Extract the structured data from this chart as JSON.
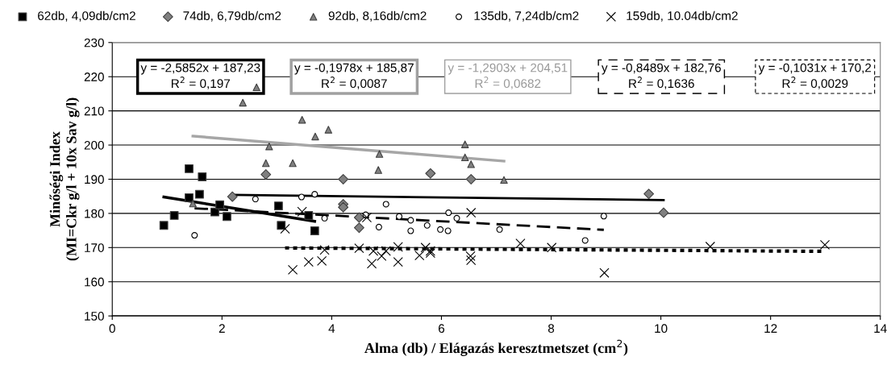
{
  "chart_data": {
    "type": "scatter",
    "xlabel": "Alma (db) / Elágazás keresztmetszet (cm$^{2}$)",
    "ylabel": "Minőségi Index\n(MI=Ckr g/l + 10x Sav g/l)",
    "xlim": [
      0,
      14
    ],
    "xticks": [
      0,
      2,
      4,
      6,
      8,
      10,
      12,
      14
    ],
    "ylim": [
      150,
      230
    ],
    "yticks": [
      150,
      160,
      170,
      180,
      190,
      200,
      210,
      220,
      230
    ],
    "grid": "y",
    "legend": "top",
    "series": [
      {
        "name": "62db, 4,09db/cm2",
        "marker": "square",
        "color": "#000000",
        "x": [
          0.94,
          1.13,
          1.4,
          1.4,
          1.59,
          1.64,
          1.87,
          1.96,
          2.09,
          3.03,
          3.08,
          3.58,
          3.69
        ],
        "values": [
          176.5,
          179.4,
          193.1,
          184.6,
          185.6,
          190.7,
          180.4,
          182.5,
          179.1,
          182.2,
          176.5,
          179.4,
          174.9
        ]
      },
      {
        "name": "74db, 6,79db/cm2",
        "marker": "diamond",
        "color": "#808080",
        "x": [
          2.19,
          2.8,
          4.21,
          4.21,
          4.21,
          4.5,
          4.5,
          5.8,
          6.54,
          9.78,
          10.05
        ],
        "values": [
          184.9,
          191.4,
          190.0,
          182.7,
          181.8,
          178.8,
          175.8,
          191.7,
          190.0,
          185.7,
          180.2
        ]
      },
      {
        "name": "92db, 8,16db/cm2",
        "marker": "triangle",
        "color": "#808080",
        "x": [
          1.47,
          2.38,
          2.63,
          2.8,
          2.86,
          3.29,
          3.46,
          3.7,
          3.94,
          4.85,
          4.87,
          6.43,
          6.43,
          6.54,
          7.14
        ],
        "values": [
          182.9,
          212.4,
          216.9,
          194.7,
          199.6,
          194.7,
          207.4,
          202.5,
          204.5,
          192.7,
          197.4,
          200.2,
          196.4,
          194.4,
          189.8
        ]
      },
      {
        "name": "135db, 7,24db/cm2",
        "marker": "circle",
        "color": "#ffffff",
        "x": [
          1.5,
          2.61,
          3.45,
          3.69,
          3.87,
          4.62,
          4.86,
          4.99,
          5.23,
          5.44,
          5.44,
          5.74,
          5.98,
          6.12,
          6.13,
          6.28,
          7.06,
          8.62,
          8.96
        ],
        "values": [
          173.6,
          184.2,
          184.8,
          185.6,
          178.6,
          179.6,
          176.0,
          182.7,
          179.1,
          178.0,
          174.9,
          176.5,
          175.3,
          174.9,
          180.2,
          178.6,
          175.3,
          172.1,
          179.2
        ]
      },
      {
        "name": "159db, 10.04db/cm2",
        "marker": "cross",
        "color": "#000000",
        "x": [
          3.15,
          3.29,
          3.46,
          3.58,
          3.82,
          3.87,
          4.5,
          4.64,
          4.73,
          4.76,
          4.91,
          4.99,
          5.21,
          5.21,
          5.6,
          5.71,
          5.8,
          5.8,
          6.53,
          6.54,
          6.54,
          7.44,
          8.01,
          8.97,
          10.9,
          12.99
        ],
        "values": [
          175.5,
          163.5,
          180.5,
          165.8,
          166.1,
          169.3,
          169.8,
          178.8,
          165.3,
          169.0,
          167.5,
          169.0,
          170.2,
          165.8,
          167.7,
          170.0,
          169.0,
          168.4,
          167.5,
          180.2,
          166.3,
          171.2,
          170.0,
          162.6,
          170.3,
          170.8
        ]
      },
      {
        "type": "line",
        "color": "#000000",
        "line_style": "solid",
        "x": [
          0.94,
          3.69
        ],
        "values": [
          184.8,
          177.7
        ]
      },
      {
        "type": "line",
        "color": "#000000",
        "line_style": "solid",
        "x": [
          2.19,
          10.05
        ],
        "values": [
          185.4,
          183.9
        ]
      },
      {
        "type": "line",
        "color": "#a6a6a6",
        "line_style": "solid",
        "x": [
          1.47,
          7.14
        ],
        "values": [
          202.6,
          195.3
        ]
      },
      {
        "type": "line",
        "color": "#000000",
        "line_style": "dashed",
        "x": [
          1.5,
          8.96
        ],
        "values": [
          181.5,
          175.2
        ]
      },
      {
        "type": "line",
        "color": "#000000",
        "line_style": "dotted",
        "x": [
          3.15,
          12.99
        ],
        "values": [
          169.9,
          168.9
        ]
      }
    ],
    "annotations": [
      "y = -2,5852x + 187,23\nR$^{2}$ = 0,197",
      "y = -0,1978x + 185,87\nR$^{2}$ = 0,0087",
      "y = -1,2903x + 204,51\nR$^{2}$ = 0,0682",
      "y = -0,8489x + 182,76\nR$^{2}$ = 0,1636",
      "y = -0,1031x + 170,2\nR$^{2}$ = 0,0029"
    ]
  }
}
